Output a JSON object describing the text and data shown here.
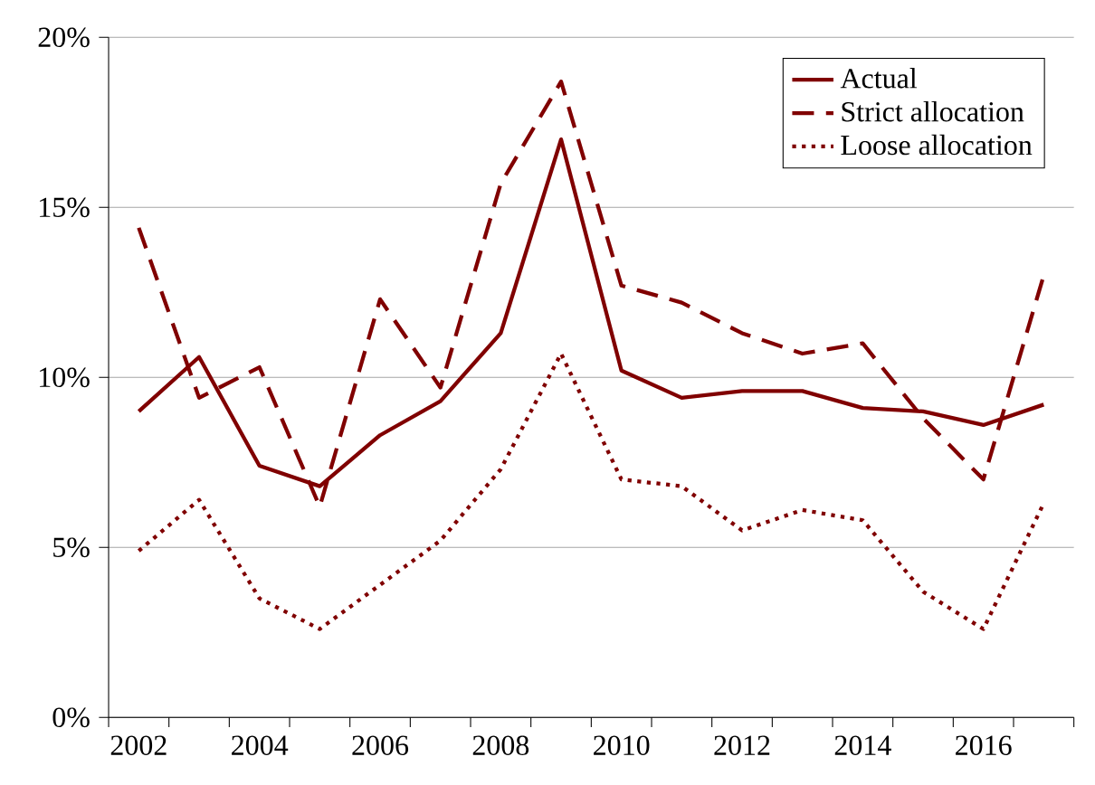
{
  "chart_data": {
    "type": "line",
    "categories": [
      "2002",
      null,
      "2004",
      null,
      "2006",
      null,
      "2008",
      null,
      "2010",
      null,
      "2012",
      null,
      "2014",
      null,
      "2016",
      null
    ],
    "series": [
      {
        "name": "Actual",
        "color": "#800000",
        "line_style": "solid",
        "values": [
          9.0,
          10.6,
          7.4,
          6.8,
          8.3,
          9.3,
          11.3,
          17.0,
          10.2,
          9.4,
          9.6,
          9.6,
          9.1,
          9.0,
          8.6,
          9.2
        ]
      },
      {
        "name": "Strict allocation",
        "color": "#800000",
        "line_style": "dashed",
        "values": [
          14.4,
          9.4,
          10.3,
          6.2,
          12.3,
          9.7,
          15.7,
          18.7,
          12.7,
          12.2,
          11.3,
          10.7,
          11.0,
          8.8,
          7.0,
          13.0
        ]
      },
      {
        "name": "Loose allocation",
        "color": "#800000",
        "line_style": "dotted",
        "values": [
          4.9,
          6.4,
          3.5,
          2.6,
          3.9,
          5.2,
          7.3,
          10.7,
          7.0,
          6.8,
          5.5,
          6.1,
          5.8,
          3.7,
          2.6,
          6.3
        ]
      }
    ],
    "ylim": [
      0,
      20
    ],
    "yticks": [
      {
        "value": 0,
        "label": "0%"
      },
      {
        "value": 5,
        "label": "5%"
      },
      {
        "value": 10,
        "label": "10%"
      },
      {
        "value": 15,
        "label": "15%"
      },
      {
        "value": 20,
        "label": "20%"
      }
    ],
    "grid": "y",
    "legend": "top right",
    "marker": "none"
  }
}
